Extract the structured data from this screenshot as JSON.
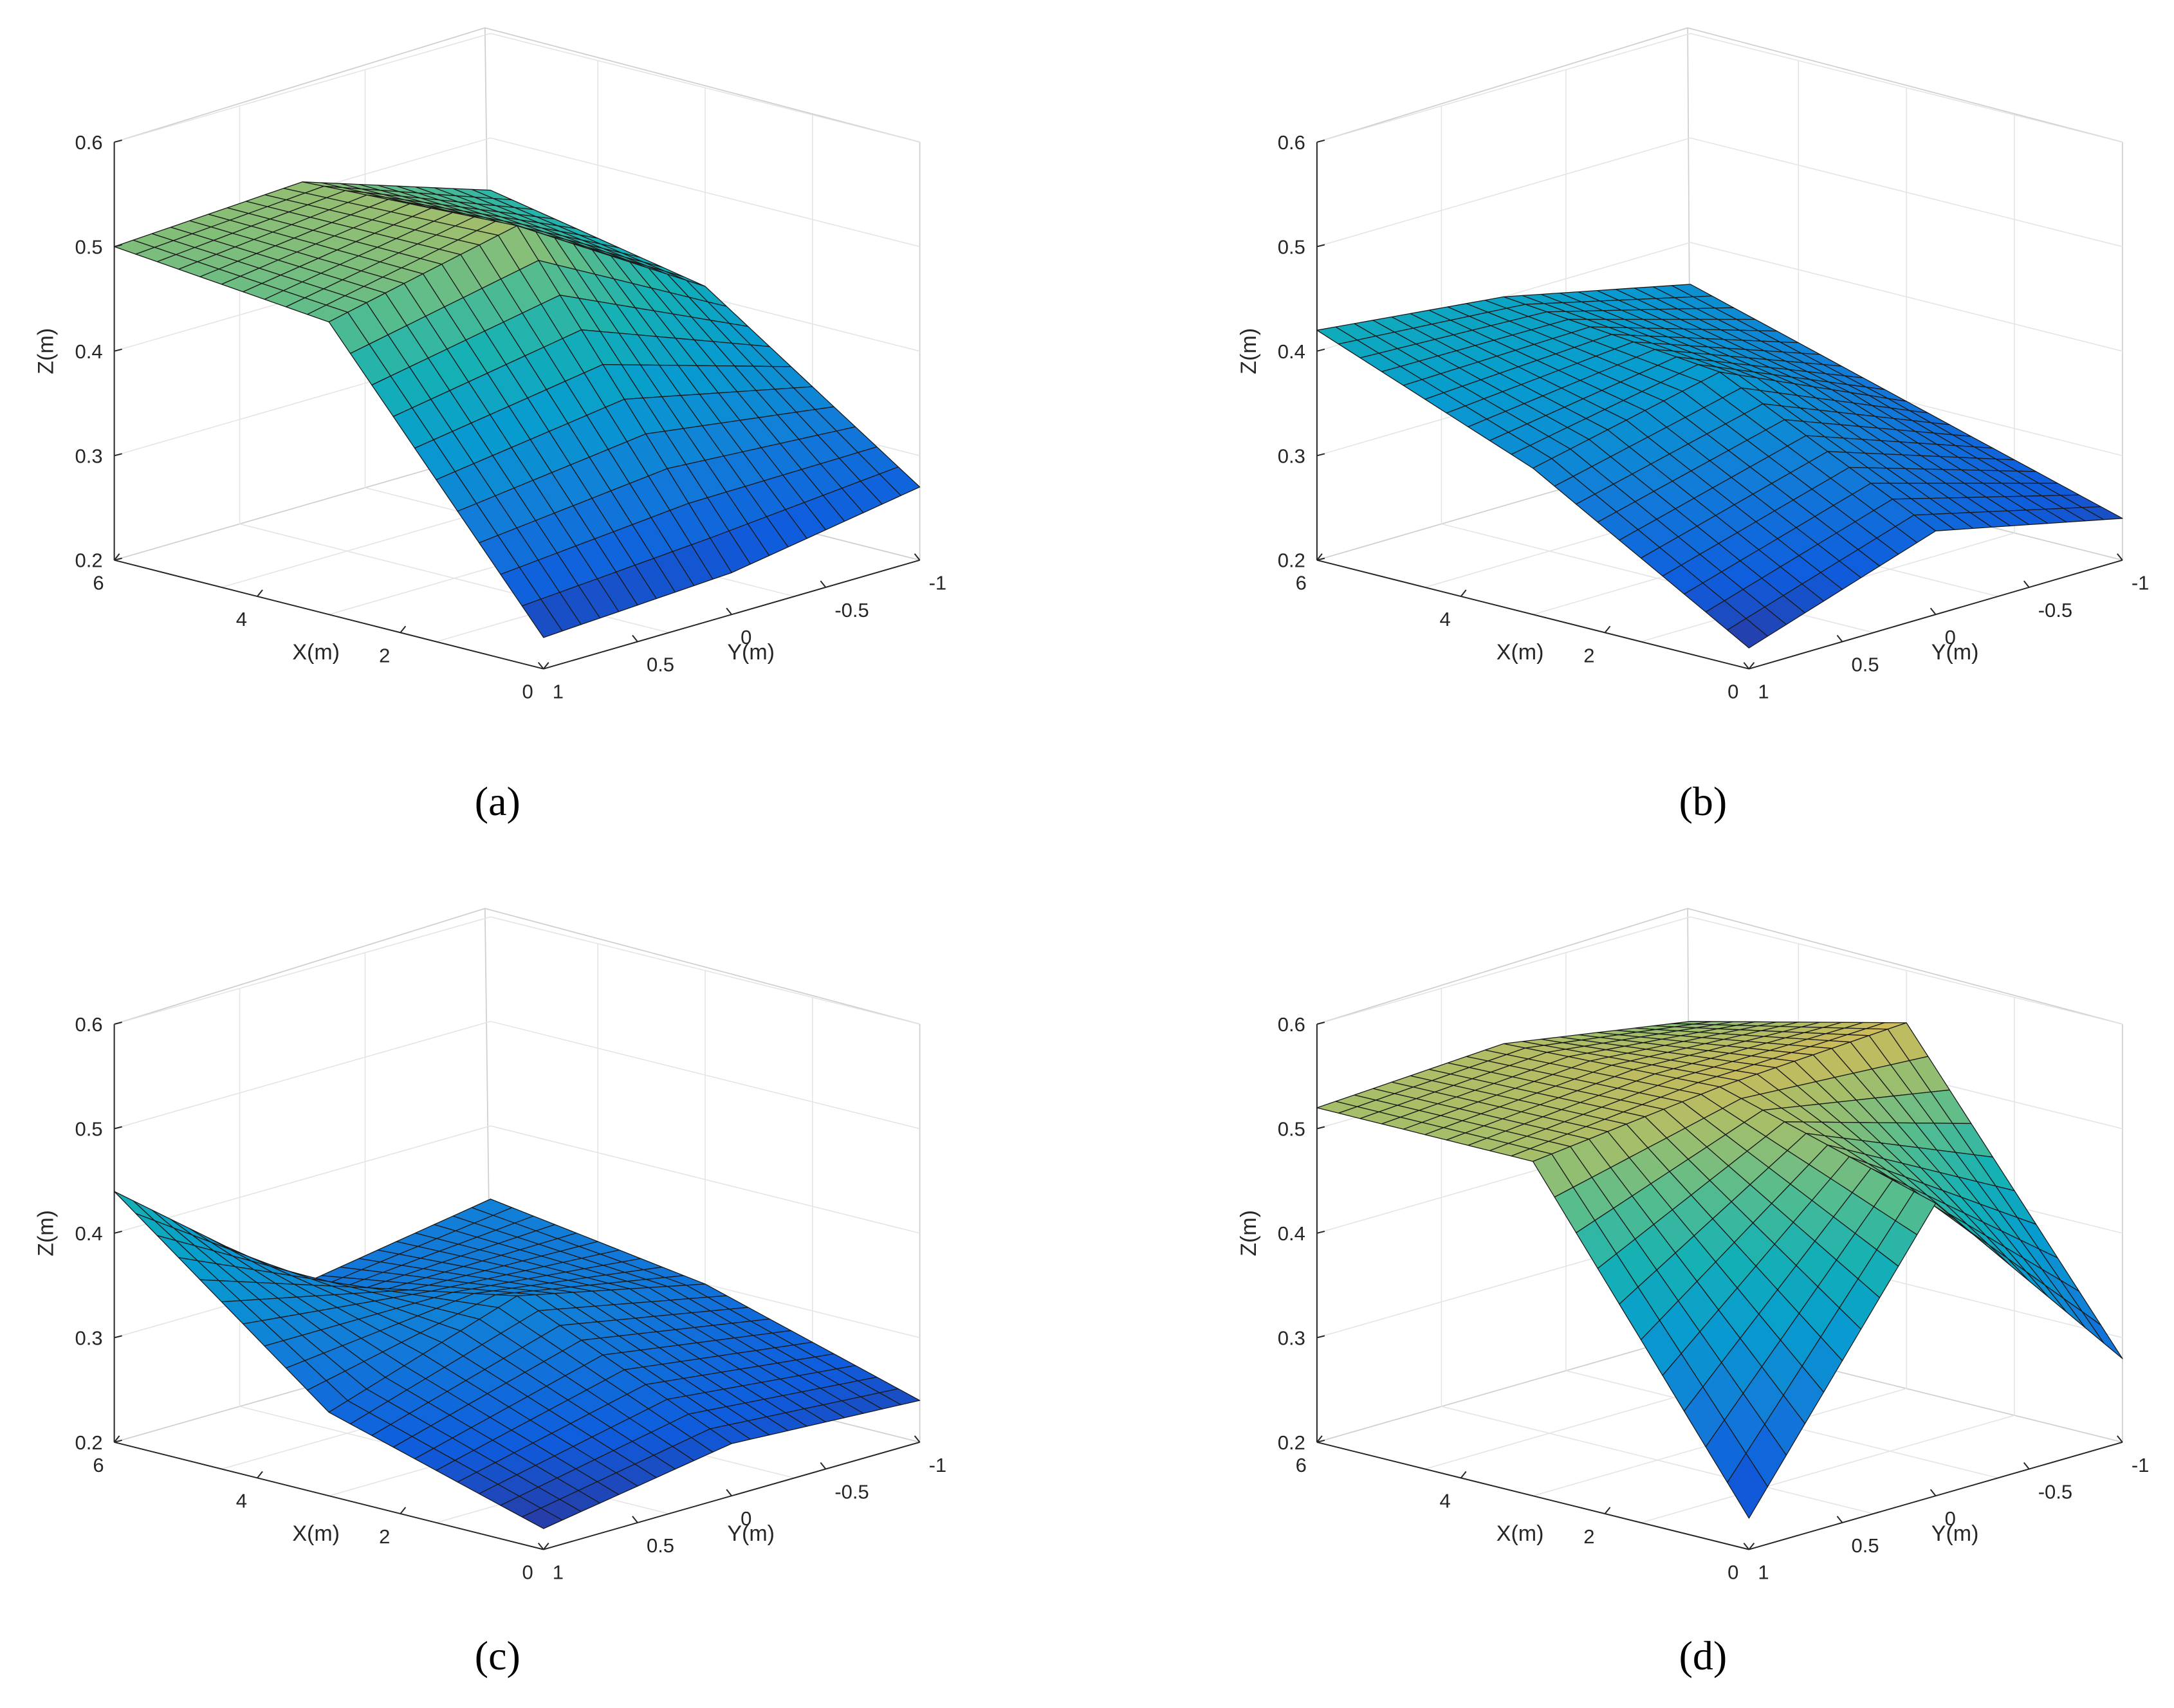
{
  "figure": {
    "captions": [
      "(a)",
      "(b)",
      "(c)",
      "(d)"
    ]
  },
  "chart_data": [
    {
      "type": "surface",
      "panel_label": "a",
      "caption": "(a)",
      "xlabel": "X(m)",
      "ylabel": "Y(m)",
      "zlabel": "Z(m)",
      "xlim": [
        0,
        6
      ],
      "ylim": [
        -1,
        1
      ],
      "zlim": [
        0.2,
        0.6
      ],
      "xticks": [
        "0",
        "2",
        "4",
        "6"
      ],
      "yticks": [
        "1",
        "0.5",
        "0",
        "-0.5",
        "-1"
      ],
      "zticks": [
        "0.2",
        "0.3",
        "0.4",
        "0.5",
        "0.6"
      ],
      "grid": true,
      "colormap": "parula",
      "x": [
        0,
        3,
        6
      ],
      "y": [
        1,
        0,
        -1
      ],
      "z": [
        [
          0.23,
          0.48,
          0.5
        ],
        [
          0.24,
          0.52,
          0.51
        ],
        [
          0.27,
          0.41,
          0.45
        ]
      ]
    },
    {
      "type": "surface",
      "panel_label": "b",
      "caption": "(b)",
      "xlabel": "X(m)",
      "ylabel": "Y(m)",
      "zlabel": "Z(m)",
      "xlim": [
        0,
        6
      ],
      "ylim": [
        -1,
        1
      ],
      "zlim": [
        0.2,
        0.6
      ],
      "xticks": [
        "0",
        "2",
        "4",
        "6"
      ],
      "yticks": [
        "1",
        "0.5",
        "0",
        "-0.5",
        "-1"
      ],
      "zticks": [
        "0.2",
        "0.3",
        "0.4",
        "0.5",
        "0.6"
      ],
      "grid": true,
      "colormap": "parula",
      "x": [
        0,
        3,
        6
      ],
      "y": [
        1,
        0,
        -1
      ],
      "z": [
        [
          0.22,
          0.34,
          0.42
        ],
        [
          0.28,
          0.38,
          0.4
        ],
        [
          0.24,
          0.3,
          0.36
        ]
      ]
    },
    {
      "type": "surface",
      "panel_label": "c",
      "caption": "(c)",
      "xlabel": "X(m)",
      "ylabel": "Y(m)",
      "zlabel": "Z(m)",
      "xlim": [
        0,
        6
      ],
      "ylim": [
        -1,
        1
      ],
      "zlim": [
        0.2,
        0.6
      ],
      "xticks": [
        "0",
        "2",
        "4",
        "6"
      ],
      "yticks": [
        "1",
        "0.5",
        "0",
        "-0.5",
        "-1"
      ],
      "zticks": [
        "0.2",
        "0.3",
        "0.4",
        "0.5",
        "0.6"
      ],
      "grid": true,
      "colormap": "parula",
      "x": [
        0,
        3,
        6
      ],
      "y": [
        1,
        0,
        -1
      ],
      "z": [
        [
          0.22,
          0.28,
          0.44
        ],
        [
          0.25,
          0.34,
          0.3
        ],
        [
          0.24,
          0.3,
          0.33
        ]
      ]
    },
    {
      "type": "surface",
      "panel_label": "d",
      "caption": "(d)",
      "xlabel": "X(m)",
      "ylabel": "Y(m)",
      "zlabel": "Z(m)",
      "xlim": [
        0,
        6
      ],
      "ylim": [
        -1,
        1
      ],
      "zlim": [
        0.2,
        0.6
      ],
      "xticks": [
        "0",
        "2",
        "4",
        "6"
      ],
      "yticks": [
        "1",
        "0.5",
        "0",
        "-0.5",
        "-1"
      ],
      "zticks": [
        "0.2",
        "0.3",
        "0.4",
        "0.5",
        "0.6"
      ],
      "grid": true,
      "colormap": "parula",
      "x": [
        0,
        3,
        6
      ],
      "y": [
        1,
        0,
        -1
      ],
      "z": [
        [
          0.23,
          0.52,
          0.52
        ],
        [
          0.48,
          0.54,
          0.53
        ],
        [
          0.28,
          0.55,
          0.5
        ]
      ]
    }
  ]
}
